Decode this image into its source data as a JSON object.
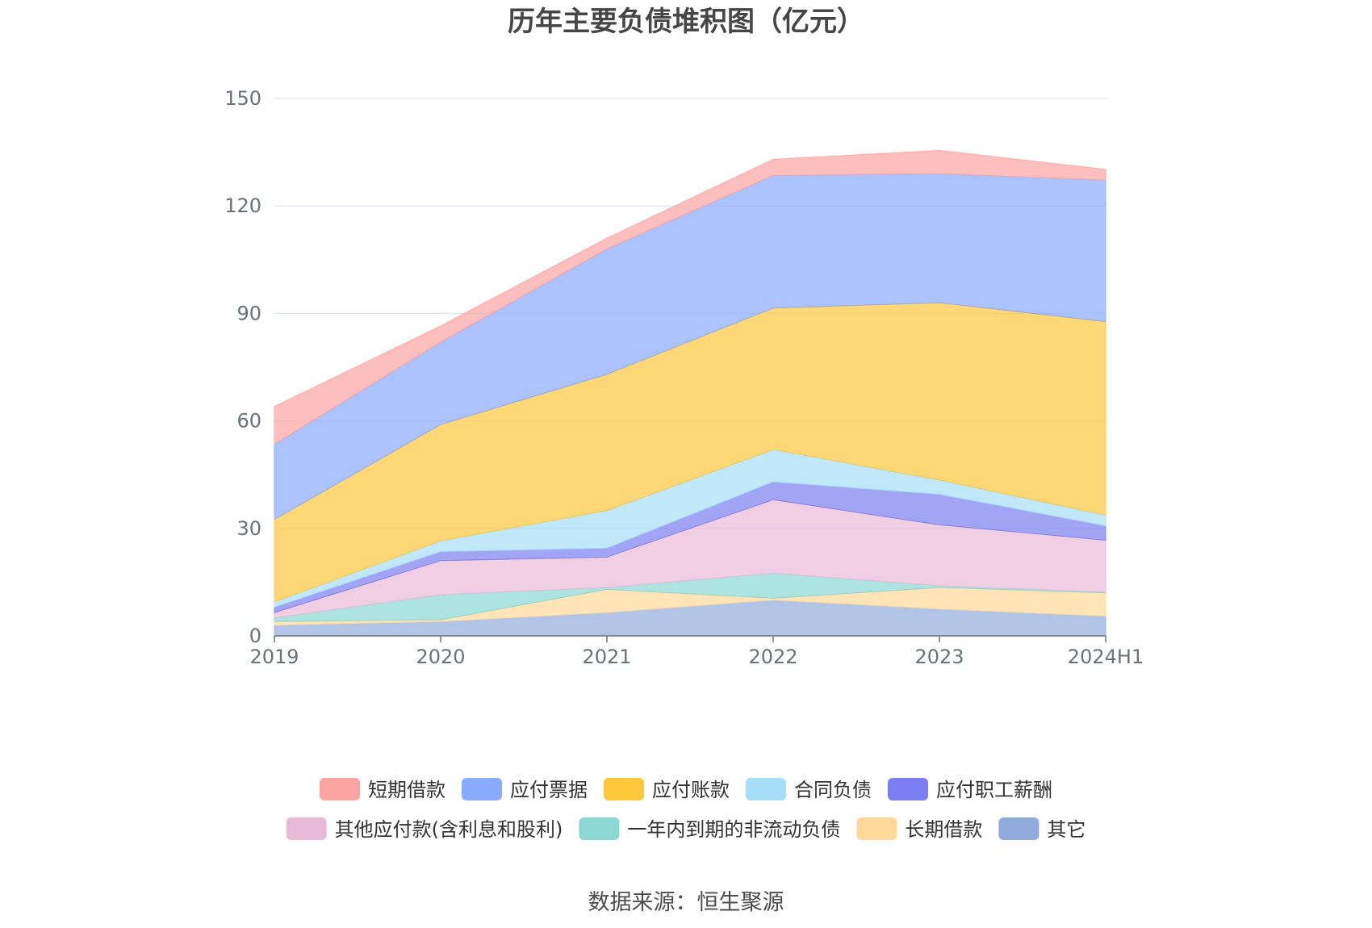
{
  "chart_data": {
    "type": "area",
    "stacked": true,
    "title": "历年主要负债堆积图（亿元）",
    "categories": [
      "2019",
      "2020",
      "2021",
      "2022",
      "2023",
      "2024H1"
    ],
    "ylim": [
      0,
      150
    ],
    "yticks": [
      0,
      30,
      60,
      90,
      120,
      150
    ],
    "grid": true,
    "legend_position": "bottom",
    "source": "数据来源：恒生聚源",
    "series": [
      {
        "name": "其它",
        "color": "#91acdc",
        "values": [
          3.0,
          4.0,
          6.5,
          10.0,
          7.5,
          5.5
        ]
      },
      {
        "name": "长期借款",
        "color": "#ffd99a",
        "values": [
          1.0,
          0.5,
          6.5,
          0.5,
          6.0,
          6.5
        ]
      },
      {
        "name": "一年内到期的非流动负债",
        "color": "#8ad7d4",
        "values": [
          1.0,
          7.0,
          0.5,
          7.0,
          0.5,
          0.2
        ]
      },
      {
        "name": "其他应付款(含利息和股利)",
        "color": "#e9b9d8",
        "values": [
          1.5,
          9.5,
          8.5,
          20.5,
          17.0,
          14.5
        ]
      },
      {
        "name": "应付职工薪酬",
        "color": "#7b7ef0",
        "values": [
          1.5,
          2.5,
          2.5,
          5.0,
          8.5,
          4.0
        ]
      },
      {
        "name": "合同负债",
        "color": "#a6def7",
        "values": [
          1.5,
          3.0,
          10.5,
          9.0,
          4.0,
          3.0
        ]
      },
      {
        "name": "应付账款",
        "color": "#fdc83c",
        "values": [
          23.0,
          32.5,
          38.0,
          39.5,
          49.5,
          54.0
        ]
      },
      {
        "name": "应付票据",
        "color": "#8aaafc",
        "values": [
          21.0,
          23.0,
          35.0,
          37.0,
          36.0,
          39.5
        ]
      },
      {
        "name": "短期借款",
        "color": "#fca4a1",
        "values": [
          10.5,
          4.5,
          3.0,
          4.5,
          6.5,
          3.0
        ]
      }
    ],
    "legend_order": [
      "短期借款",
      "应付票据",
      "应付账款",
      "合同负债",
      "应付职工薪酬",
      "其他应付款(含利息和股利)",
      "一年内到期的非流动负债",
      "长期借款",
      "其它"
    ]
  }
}
